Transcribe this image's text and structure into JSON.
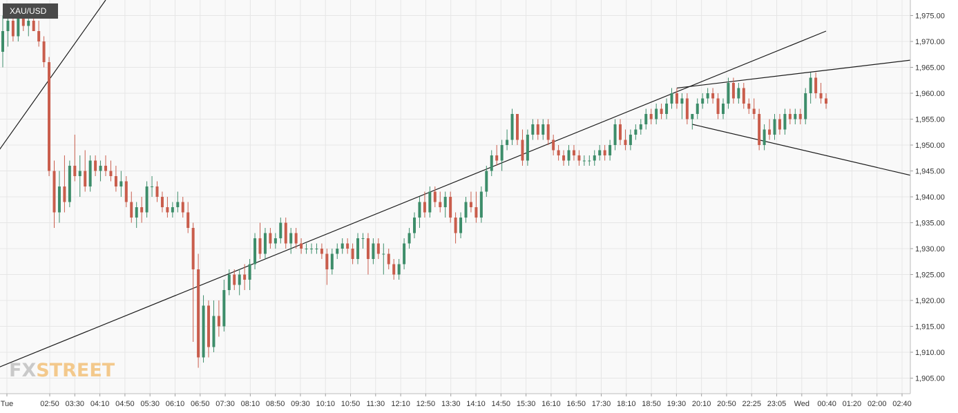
{
  "chart_data": {
    "type": "candlestick",
    "symbol": "XAU/USD",
    "watermark": {
      "part1": "FX",
      "part2": "STREET"
    },
    "colors": {
      "up": "#3d8d6a",
      "down": "#c95d4c",
      "grid": "#e6e6e6",
      "trendline": "#1a1a1a",
      "background": "#f9f9f9"
    },
    "ylim": [
      1902,
      1978
    ],
    "y_ticks": [
      "1,905.00",
      "1,910.00",
      "1,915.00",
      "1,920.00",
      "1,925.00",
      "1,930.00",
      "1,935.00",
      "1,940.00",
      "1,945.00",
      "1,950.00",
      "1,955.00",
      "1,960.00",
      "1,965.00",
      "1,970.00",
      "1,975.00"
    ],
    "x_ticks": [
      "Tue",
      "02:50",
      "03:30",
      "04:10",
      "04:50",
      "05:30",
      "06:10",
      "06:50",
      "07:30",
      "08:10",
      "08:50",
      "09:30",
      "10:10",
      "10:50",
      "11:30",
      "12:10",
      "12:50",
      "13:30",
      "14:10",
      "14:50",
      "15:30",
      "16:10",
      "16:50",
      "17:30",
      "18:10",
      "18:50",
      "19:30",
      "20:10",
      "20:50",
      "22:25",
      "23:05",
      "Wed",
      "00:40",
      "01:20",
      "02:00",
      "02:40"
    ],
    "candles": [
      {
        "i": 0,
        "o": 1968,
        "h": 1975,
        "l": 1965,
        "c": 1972
      },
      {
        "i": 1,
        "o": 1972,
        "h": 1976,
        "l": 1969,
        "c": 1974
      },
      {
        "i": 2,
        "o": 1974,
        "h": 1976,
        "l": 1970,
        "c": 1971
      },
      {
        "i": 3,
        "o": 1971,
        "h": 1976,
        "l": 1970,
        "c": 1975
      },
      {
        "i": 4,
        "o": 1975,
        "h": 1977,
        "l": 1972,
        "c": 1973
      },
      {
        "i": 5,
        "o": 1973,
        "h": 1976,
        "l": 1971,
        "c": 1974
      },
      {
        "i": 6,
        "o": 1974,
        "h": 1976,
        "l": 1972,
        "c": 1972
      },
      {
        "i": 7,
        "o": 1972,
        "h": 1974,
        "l": 1969,
        "c": 1970
      },
      {
        "i": 8,
        "o": 1970,
        "h": 1971,
        "l": 1965,
        "c": 1966
      },
      {
        "i": 9,
        "o": 1966,
        "h": 1967,
        "l": 1944,
        "c": 1945
      },
      {
        "i": 10,
        "o": 1945,
        "h": 1947,
        "l": 1934,
        "c": 1937
      },
      {
        "i": 11,
        "o": 1937,
        "h": 1945,
        "l": 1935,
        "c": 1942
      },
      {
        "i": 12,
        "o": 1942,
        "h": 1948,
        "l": 1937,
        "c": 1939
      },
      {
        "i": 13,
        "o": 1939,
        "h": 1947,
        "l": 1938,
        "c": 1946
      },
      {
        "i": 14,
        "o": 1946,
        "h": 1952,
        "l": 1943,
        "c": 1944
      },
      {
        "i": 15,
        "o": 1944,
        "h": 1948,
        "l": 1940,
        "c": 1945
      },
      {
        "i": 16,
        "o": 1945,
        "h": 1949,
        "l": 1941,
        "c": 1942
      },
      {
        "i": 17,
        "o": 1942,
        "h": 1948,
        "l": 1941,
        "c": 1947
      },
      {
        "i": 18,
        "o": 1947,
        "h": 1948,
        "l": 1944,
        "c": 1945
      },
      {
        "i": 19,
        "o": 1945,
        "h": 1947,
        "l": 1943,
        "c": 1946
      },
      {
        "i": 20,
        "o": 1946,
        "h": 1948,
        "l": 1944,
        "c": 1945
      },
      {
        "i": 21,
        "o": 1945,
        "h": 1947,
        "l": 1943,
        "c": 1944
      },
      {
        "i": 22,
        "o": 1944,
        "h": 1946,
        "l": 1941,
        "c": 1942
      },
      {
        "i": 23,
        "o": 1942,
        "h": 1945,
        "l": 1940,
        "c": 1943
      },
      {
        "i": 24,
        "o": 1943,
        "h": 1944,
        "l": 1938,
        "c": 1939
      },
      {
        "i": 25,
        "o": 1939,
        "h": 1941,
        "l": 1935,
        "c": 1936
      },
      {
        "i": 26,
        "o": 1936,
        "h": 1939,
        "l": 1934,
        "c": 1938
      },
      {
        "i": 27,
        "o": 1938,
        "h": 1940,
        "l": 1935,
        "c": 1937
      },
      {
        "i": 28,
        "o": 1937,
        "h": 1943,
        "l": 1936,
        "c": 1942
      },
      {
        "i": 29,
        "o": 1942,
        "h": 1944,
        "l": 1940,
        "c": 1942
      },
      {
        "i": 30,
        "o": 1942,
        "h": 1943,
        "l": 1939,
        "c": 1940
      },
      {
        "i": 31,
        "o": 1940,
        "h": 1941,
        "l": 1937,
        "c": 1938
      },
      {
        "i": 32,
        "o": 1938,
        "h": 1940,
        "l": 1936,
        "c": 1937
      },
      {
        "i": 33,
        "o": 1937,
        "h": 1939,
        "l": 1936,
        "c": 1938
      },
      {
        "i": 34,
        "o": 1938,
        "h": 1941,
        "l": 1937,
        "c": 1939
      },
      {
        "i": 35,
        "o": 1939,
        "h": 1940,
        "l": 1936,
        "c": 1937
      },
      {
        "i": 36,
        "o": 1937,
        "h": 1939,
        "l": 1933,
        "c": 1934
      },
      {
        "i": 37,
        "o": 1934,
        "h": 1935,
        "l": 1912,
        "c": 1926
      },
      {
        "i": 38,
        "o": 1926,
        "h": 1929,
        "l": 1907,
        "c": 1909
      },
      {
        "i": 39,
        "o": 1909,
        "h": 1921,
        "l": 1908,
        "c": 1919
      },
      {
        "i": 40,
        "o": 1919,
        "h": 1920,
        "l": 1909,
        "c": 1911
      },
      {
        "i": 41,
        "o": 1911,
        "h": 1920,
        "l": 1910,
        "c": 1917
      },
      {
        "i": 42,
        "o": 1917,
        "h": 1920,
        "l": 1913,
        "c": 1915
      },
      {
        "i": 43,
        "o": 1915,
        "h": 1924,
        "l": 1914,
        "c": 1922
      },
      {
        "i": 44,
        "o": 1922,
        "h": 1926,
        "l": 1921,
        "c": 1925
      },
      {
        "i": 45,
        "o": 1925,
        "h": 1926,
        "l": 1922,
        "c": 1923
      },
      {
        "i": 46,
        "o": 1923,
        "h": 1926,
        "l": 1921,
        "c": 1925
      },
      {
        "i": 47,
        "o": 1925,
        "h": 1927,
        "l": 1922,
        "c": 1924
      },
      {
        "i": 48,
        "o": 1924,
        "h": 1928,
        "l": 1922,
        "c": 1927
      },
      {
        "i": 49,
        "o": 1927,
        "h": 1933,
        "l": 1926,
        "c": 1932
      },
      {
        "i": 50,
        "o": 1932,
        "h": 1935,
        "l": 1928,
        "c": 1929
      },
      {
        "i": 51,
        "o": 1929,
        "h": 1934,
        "l": 1928,
        "c": 1933
      },
      {
        "i": 52,
        "o": 1933,
        "h": 1934,
        "l": 1930,
        "c": 1931
      },
      {
        "i": 53,
        "o": 1931,
        "h": 1933,
        "l": 1930,
        "c": 1932
      },
      {
        "i": 54,
        "o": 1932,
        "h": 1936,
        "l": 1931,
        "c": 1935
      },
      {
        "i": 55,
        "o": 1935,
        "h": 1936,
        "l": 1930,
        "c": 1931
      },
      {
        "i": 56,
        "o": 1931,
        "h": 1934,
        "l": 1929,
        "c": 1933
      },
      {
        "i": 57,
        "o": 1933,
        "h": 1934,
        "l": 1930,
        "c": 1931
      },
      {
        "i": 58,
        "o": 1931,
        "h": 1932,
        "l": 1929,
        "c": 1930
      },
      {
        "i": 59,
        "o": 1930,
        "h": 1931,
        "l": 1929,
        "c": 1930
      },
      {
        "i": 60,
        "o": 1930,
        "h": 1931,
        "l": 1929,
        "c": 1930
      },
      {
        "i": 61,
        "o": 1930,
        "h": 1931,
        "l": 1929,
        "c": 1930
      },
      {
        "i": 62,
        "o": 1930,
        "h": 1931,
        "l": 1928,
        "c": 1929
      },
      {
        "i": 63,
        "o": 1929,
        "h": 1930,
        "l": 1923,
        "c": 1926
      },
      {
        "i": 64,
        "o": 1926,
        "h": 1930,
        "l": 1925,
        "c": 1929
      },
      {
        "i": 65,
        "o": 1929,
        "h": 1931,
        "l": 1928,
        "c": 1930
      },
      {
        "i": 66,
        "o": 1930,
        "h": 1932,
        "l": 1929,
        "c": 1931
      },
      {
        "i": 67,
        "o": 1931,
        "h": 1932,
        "l": 1929,
        "c": 1930
      },
      {
        "i": 68,
        "o": 1930,
        "h": 1931,
        "l": 1927,
        "c": 1928
      },
      {
        "i": 69,
        "o": 1928,
        "h": 1933,
        "l": 1927,
        "c": 1932
      },
      {
        "i": 70,
        "o": 1932,
        "h": 1933,
        "l": 1930,
        "c": 1932
      },
      {
        "i": 71,
        "o": 1932,
        "h": 1933,
        "l": 1925,
        "c": 1928
      },
      {
        "i": 72,
        "o": 1928,
        "h": 1932,
        "l": 1927,
        "c": 1931
      },
      {
        "i": 73,
        "o": 1931,
        "h": 1932,
        "l": 1928,
        "c": 1929
      },
      {
        "i": 74,
        "o": 1929,
        "h": 1931,
        "l": 1925,
        "c": 1929
      },
      {
        "i": 75,
        "o": 1929,
        "h": 1930,
        "l": 1926,
        "c": 1927
      },
      {
        "i": 76,
        "o": 1927,
        "h": 1928,
        "l": 1924,
        "c": 1925
      },
      {
        "i": 77,
        "o": 1925,
        "h": 1928,
        "l": 1924,
        "c": 1927
      },
      {
        "i": 78,
        "o": 1927,
        "h": 1932,
        "l": 1926,
        "c": 1931
      },
      {
        "i": 79,
        "o": 1931,
        "h": 1934,
        "l": 1930,
        "c": 1933
      },
      {
        "i": 80,
        "o": 1933,
        "h": 1937,
        "l": 1932,
        "c": 1936
      },
      {
        "i": 81,
        "o": 1936,
        "h": 1940,
        "l": 1934,
        "c": 1939
      },
      {
        "i": 82,
        "o": 1939,
        "h": 1941,
        "l": 1936,
        "c": 1937
      },
      {
        "i": 83,
        "o": 1937,
        "h": 1942,
        "l": 1936,
        "c": 1941
      },
      {
        "i": 84,
        "o": 1941,
        "h": 1942,
        "l": 1938,
        "c": 1939
      },
      {
        "i": 85,
        "o": 1939,
        "h": 1941,
        "l": 1937,
        "c": 1938
      },
      {
        "i": 86,
        "o": 1938,
        "h": 1941,
        "l": 1936,
        "c": 1940
      },
      {
        "i": 87,
        "o": 1940,
        "h": 1941,
        "l": 1935,
        "c": 1936
      },
      {
        "i": 88,
        "o": 1936,
        "h": 1937,
        "l": 1931,
        "c": 1933
      },
      {
        "i": 89,
        "o": 1933,
        "h": 1937,
        "l": 1932,
        "c": 1936
      },
      {
        "i": 90,
        "o": 1936,
        "h": 1940,
        "l": 1935,
        "c": 1939
      },
      {
        "i": 91,
        "o": 1939,
        "h": 1941,
        "l": 1937,
        "c": 1938
      },
      {
        "i": 92,
        "o": 1938,
        "h": 1941,
        "l": 1935,
        "c": 1936
      },
      {
        "i": 93,
        "o": 1936,
        "h": 1942,
        "l": 1935,
        "c": 1941
      },
      {
        "i": 94,
        "o": 1941,
        "h": 1946,
        "l": 1940,
        "c": 1945
      },
      {
        "i": 95,
        "o": 1945,
        "h": 1949,
        "l": 1944,
        "c": 1948
      },
      {
        "i": 96,
        "o": 1948,
        "h": 1950,
        "l": 1946,
        "c": 1947
      },
      {
        "i": 97,
        "o": 1947,
        "h": 1951,
        "l": 1945,
        "c": 1950
      },
      {
        "i": 98,
        "o": 1950,
        "h": 1953,
        "l": 1949,
        "c": 1951
      },
      {
        "i": 99,
        "o": 1951,
        "h": 1957,
        "l": 1950,
        "c": 1956
      },
      {
        "i": 100,
        "o": 1956,
        "h": 1956,
        "l": 1950,
        "c": 1951
      },
      {
        "i": 101,
        "o": 1951,
        "h": 1953,
        "l": 1946,
        "c": 1947
      },
      {
        "i": 102,
        "o": 1947,
        "h": 1953,
        "l": 1946,
        "c": 1952
      },
      {
        "i": 103,
        "o": 1952,
        "h": 1955,
        "l": 1951,
        "c": 1954
      },
      {
        "i": 104,
        "o": 1954,
        "h": 1955,
        "l": 1951,
        "c": 1952
      },
      {
        "i": 105,
        "o": 1952,
        "h": 1955,
        "l": 1951,
        "c": 1954
      },
      {
        "i": 106,
        "o": 1954,
        "h": 1955,
        "l": 1950,
        "c": 1951
      },
      {
        "i": 107,
        "o": 1951,
        "h": 1952,
        "l": 1948,
        "c": 1949
      },
      {
        "i": 108,
        "o": 1949,
        "h": 1950,
        "l": 1947,
        "c": 1948
      },
      {
        "i": 109,
        "o": 1948,
        "h": 1949,
        "l": 1946,
        "c": 1947
      },
      {
        "i": 110,
        "o": 1947,
        "h": 1950,
        "l": 1946,
        "c": 1949
      },
      {
        "i": 111,
        "o": 1949,
        "h": 1950,
        "l": 1947,
        "c": 1948
      },
      {
        "i": 112,
        "o": 1948,
        "h": 1949,
        "l": 1946,
        "c": 1947
      },
      {
        "i": 113,
        "o": 1947,
        "h": 1948,
        "l": 1946,
        "c": 1947
      },
      {
        "i": 114,
        "o": 1947,
        "h": 1948,
        "l": 1946,
        "c": 1947
      },
      {
        "i": 115,
        "o": 1947,
        "h": 1949,
        "l": 1946,
        "c": 1948
      },
      {
        "i": 116,
        "o": 1948,
        "h": 1950,
        "l": 1947,
        "c": 1949
      },
      {
        "i": 117,
        "o": 1949,
        "h": 1950,
        "l": 1947,
        "c": 1948
      },
      {
        "i": 118,
        "o": 1948,
        "h": 1951,
        "l": 1947,
        "c": 1950
      },
      {
        "i": 119,
        "o": 1950,
        "h": 1955,
        "l": 1949,
        "c": 1954
      },
      {
        "i": 120,
        "o": 1954,
        "h": 1955,
        "l": 1950,
        "c": 1951
      },
      {
        "i": 121,
        "o": 1951,
        "h": 1953,
        "l": 1949,
        "c": 1950
      },
      {
        "i": 122,
        "o": 1950,
        "h": 1953,
        "l": 1949,
        "c": 1952
      },
      {
        "i": 123,
        "o": 1952,
        "h": 1954,
        "l": 1951,
        "c": 1953
      },
      {
        "i": 124,
        "o": 1953,
        "h": 1955,
        "l": 1952,
        "c": 1954
      },
      {
        "i": 125,
        "o": 1954,
        "h": 1957,
        "l": 1953,
        "c": 1956
      },
      {
        "i": 126,
        "o": 1956,
        "h": 1957,
        "l": 1954,
        "c": 1955
      },
      {
        "i": 127,
        "o": 1955,
        "h": 1958,
        "l": 1954,
        "c": 1957
      },
      {
        "i": 128,
        "o": 1957,
        "h": 1958,
        "l": 1955,
        "c": 1956
      },
      {
        "i": 129,
        "o": 1956,
        "h": 1959,
        "l": 1955,
        "c": 1958
      },
      {
        "i": 130,
        "o": 1958,
        "h": 1961,
        "l": 1957,
        "c": 1960
      },
      {
        "i": 131,
        "o": 1960,
        "h": 1961,
        "l": 1957,
        "c": 1958
      },
      {
        "i": 132,
        "o": 1958,
        "h": 1960,
        "l": 1955,
        "c": 1959
      },
      {
        "i": 133,
        "o": 1959,
        "h": 1960,
        "l": 1954,
        "c": 1955
      },
      {
        "i": 134,
        "o": 1955,
        "h": 1956,
        "l": 1953,
        "c": 1956
      },
      {
        "i": 135,
        "o": 1956,
        "h": 1959,
        "l": 1955,
        "c": 1958
      },
      {
        "i": 136,
        "o": 1958,
        "h": 1960,
        "l": 1957,
        "c": 1959
      },
      {
        "i": 137,
        "o": 1959,
        "h": 1961,
        "l": 1958,
        "c": 1960
      },
      {
        "i": 138,
        "o": 1960,
        "h": 1961,
        "l": 1958,
        "c": 1959
      },
      {
        "i": 139,
        "o": 1959,
        "h": 1960,
        "l": 1955,
        "c": 1956
      },
      {
        "i": 140,
        "o": 1956,
        "h": 1959,
        "l": 1955,
        "c": 1958
      },
      {
        "i": 141,
        "o": 1958,
        "h": 1963,
        "l": 1957,
        "c": 1962
      },
      {
        "i": 142,
        "o": 1962,
        "h": 1963,
        "l": 1958,
        "c": 1959
      },
      {
        "i": 143,
        "o": 1959,
        "h": 1962,
        "l": 1958,
        "c": 1961
      },
      {
        "i": 144,
        "o": 1961,
        "h": 1962,
        "l": 1957,
        "c": 1958
      },
      {
        "i": 145,
        "o": 1958,
        "h": 1959,
        "l": 1956,
        "c": 1957
      },
      {
        "i": 146,
        "o": 1957,
        "h": 1959,
        "l": 1955,
        "c": 1956
      },
      {
        "i": 147,
        "o": 1956,
        "h": 1957,
        "l": 1949,
        "c": 1950
      },
      {
        "i": 148,
        "o": 1950,
        "h": 1954,
        "l": 1949,
        "c": 1953
      },
      {
        "i": 149,
        "o": 1953,
        "h": 1955,
        "l": 1951,
        "c": 1952
      },
      {
        "i": 150,
        "o": 1952,
        "h": 1956,
        "l": 1951,
        "c": 1955
      },
      {
        "i": 151,
        "o": 1955,
        "h": 1956,
        "l": 1952,
        "c": 1953
      },
      {
        "i": 152,
        "o": 1953,
        "h": 1957,
        "l": 1952,
        "c": 1956
      },
      {
        "i": 153,
        "o": 1956,
        "h": 1957,
        "l": 1954,
        "c": 1955
      },
      {
        "i": 154,
        "o": 1955,
        "h": 1957,
        "l": 1954,
        "c": 1956
      },
      {
        "i": 155,
        "o": 1956,
        "h": 1957,
        "l": 1954,
        "c": 1955
      },
      {
        "i": 156,
        "o": 1955,
        "h": 1961,
        "l": 1954,
        "c": 1960
      },
      {
        "i": 157,
        "o": 1960,
        "h": 1964,
        "l": 1958,
        "c": 1963
      },
      {
        "i": 158,
        "o": 1963,
        "h": 1964,
        "l": 1959,
        "c": 1960
      },
      {
        "i": 159,
        "o": 1960,
        "h": 1962,
        "l": 1958,
        "c": 1959
      },
      {
        "i": 160,
        "o": 1959,
        "h": 1960,
        "l": 1957,
        "c": 1958
      }
    ],
    "trendlines": [
      {
        "x0": -1,
        "y0": 1907,
        "x1": 160,
        "y1": 1972
      },
      {
        "x0": -10,
        "y0": 1936,
        "x1": 20,
        "y1": 1978
      },
      {
        "x0": 131,
        "y0": 1961,
        "x1": 190,
        "y1": 1968
      },
      {
        "x0": 134,
        "y0": 1954,
        "x1": 190,
        "y1": 1941
      }
    ]
  }
}
